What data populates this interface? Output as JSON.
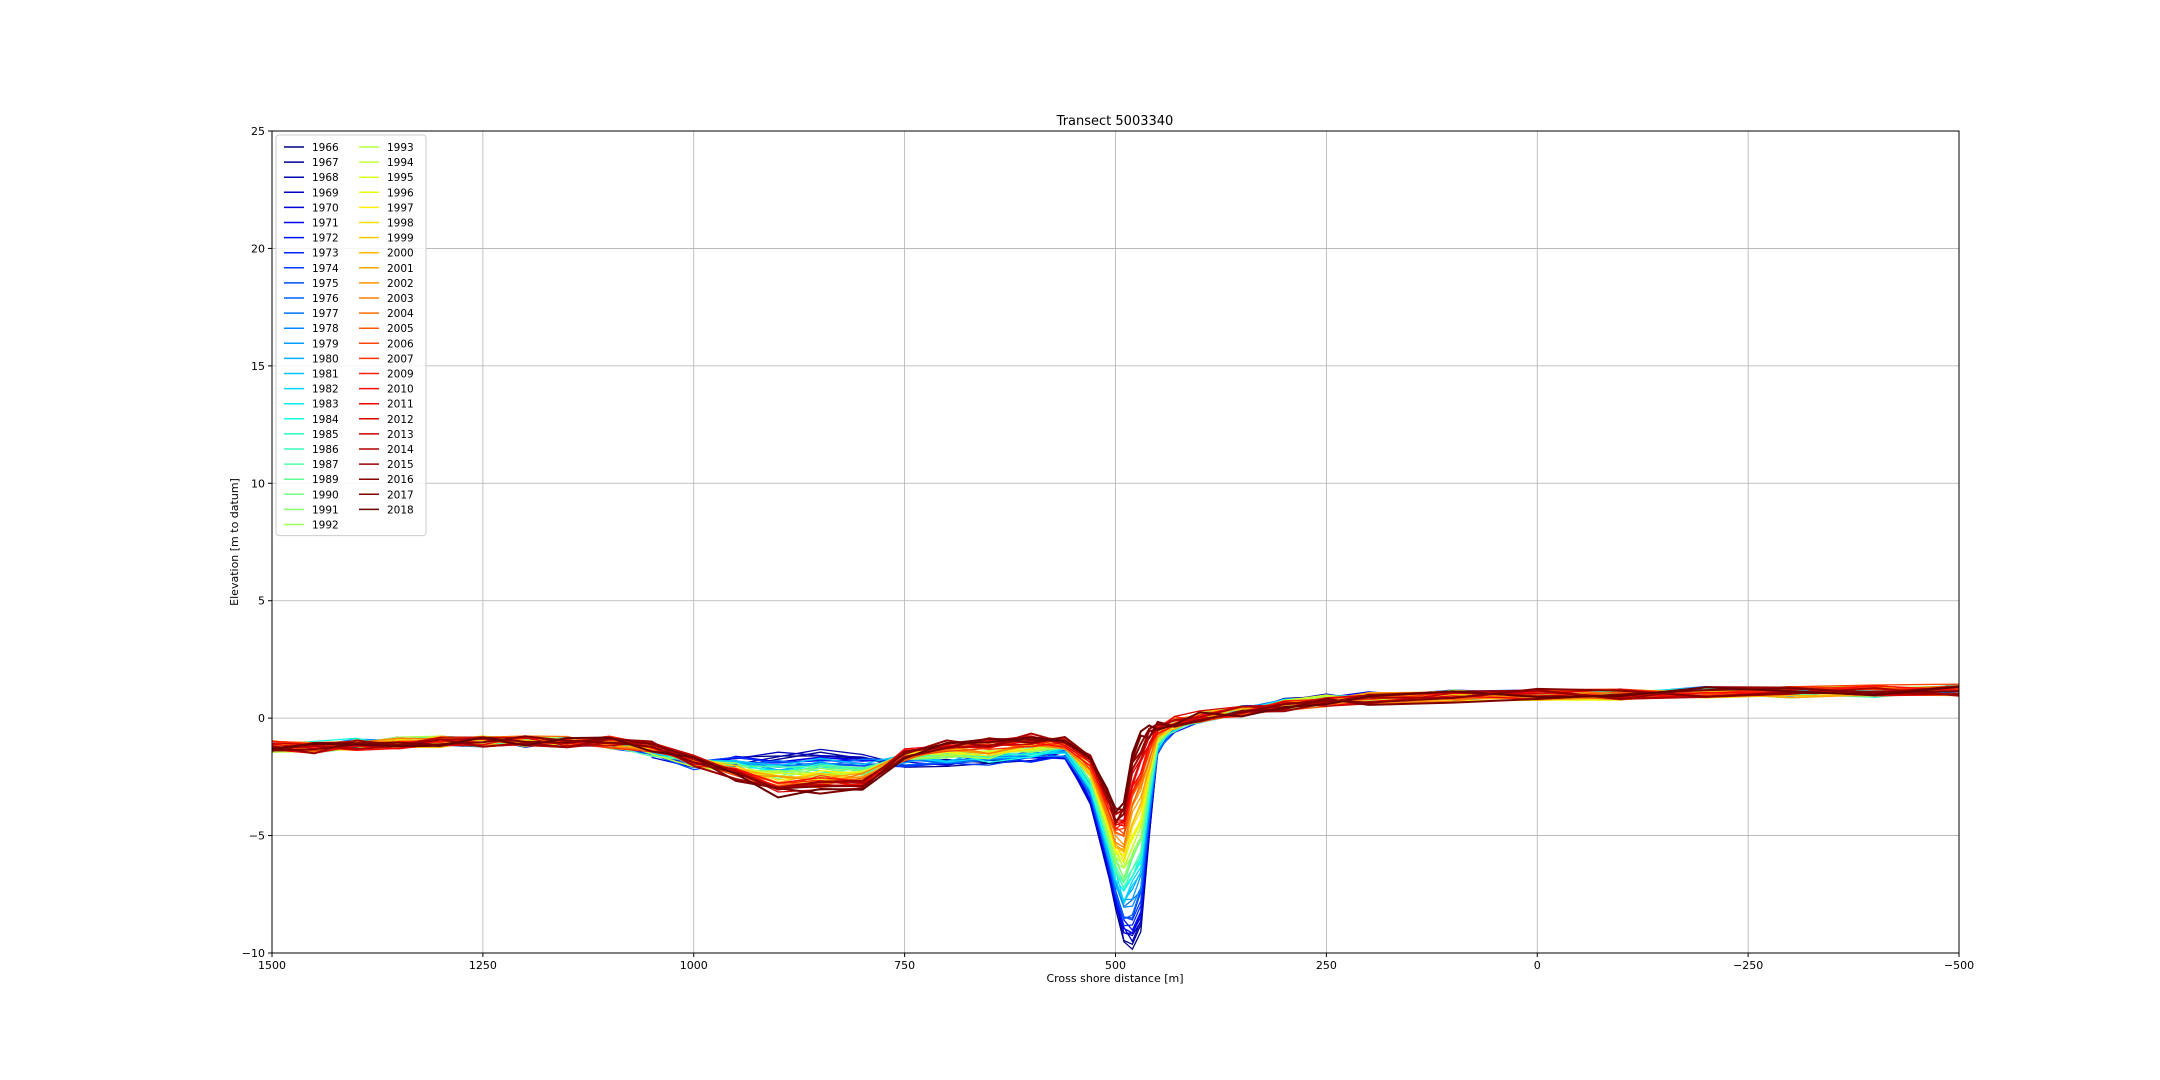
{
  "chart_data": {
    "type": "line",
    "title": "Transect 5003340",
    "xlabel": "Cross shore distance [m]",
    "ylabel": "Elevation [m to datum]",
    "xlim": [
      1500,
      -500
    ],
    "ylim": [
      -10,
      25
    ],
    "x_ticks": [
      1500,
      1250,
      1000,
      750,
      500,
      250,
      0,
      -250,
      -500
    ],
    "x_tick_labels": [
      "1500",
      "1250",
      "1000",
      "750",
      "500",
      "250",
      "0",
      "−250",
      "−500"
    ],
    "y_ticks": [
      -10,
      -5,
      0,
      5,
      10,
      15,
      20,
      25
    ],
    "y_tick_labels": [
      "−10",
      "−5",
      "0",
      "5",
      "10",
      "15",
      "20",
      "25"
    ],
    "grid": true,
    "legend_position": "upper-left",
    "legend_columns": 2,
    "colormap": "jet",
    "series": [
      {
        "name": "1966",
        "color": "#00007f"
      },
      {
        "name": "1967",
        "color": "#000096"
      },
      {
        "name": "1968",
        "color": "#0000ad"
      },
      {
        "name": "1969",
        "color": "#0000c4"
      },
      {
        "name": "1970",
        "color": "#0000db"
      },
      {
        "name": "1971",
        "color": "#0000f1"
      },
      {
        "name": "1972",
        "color": "#0010ff"
      },
      {
        "name": "1973",
        "color": "#0024ff"
      },
      {
        "name": "1974",
        "color": "#0038ff"
      },
      {
        "name": "1975",
        "color": "#004cff"
      },
      {
        "name": "1976",
        "color": "#0060ff"
      },
      {
        "name": "1977",
        "color": "#0074ff"
      },
      {
        "name": "1978",
        "color": "#0088ff"
      },
      {
        "name": "1979",
        "color": "#009cff"
      },
      {
        "name": "1980",
        "color": "#00b0ff"
      },
      {
        "name": "1981",
        "color": "#00c4ff"
      },
      {
        "name": "1982",
        "color": "#00d8ff"
      },
      {
        "name": "1983",
        "color": "#06ecf1"
      },
      {
        "name": "1984",
        "color": "#16ffe1"
      },
      {
        "name": "1985",
        "color": "#29ffce"
      },
      {
        "name": "1986",
        "color": "#3cffba"
      },
      {
        "name": "1987",
        "color": "#50ffa7"
      },
      {
        "name": "1989",
        "color": "#63ff94"
      },
      {
        "name": "1990",
        "color": "#76ff80"
      },
      {
        "name": "1991",
        "color": "#89ff6d"
      },
      {
        "name": "1992",
        "color": "#9cff5a"
      },
      {
        "name": "1993",
        "color": "#b0ff47"
      },
      {
        "name": "1994",
        "color": "#c3ff33"
      },
      {
        "name": "1995",
        "color": "#d6ff20"
      },
      {
        "name": "1996",
        "color": "#e9ff0d"
      },
      {
        "name": "1997",
        "color": "#fff200"
      },
      {
        "name": "1998",
        "color": "#ffde00"
      },
      {
        "name": "1999",
        "color": "#ffcb00"
      },
      {
        "name": "2000",
        "color": "#ffb800"
      },
      {
        "name": "2001",
        "color": "#ffa500"
      },
      {
        "name": "2002",
        "color": "#ff9200"
      },
      {
        "name": "2003",
        "color": "#ff7e00"
      },
      {
        "name": "2004",
        "color": "#ff6b00"
      },
      {
        "name": "2005",
        "color": "#ff5800"
      },
      {
        "name": "2006",
        "color": "#ff4500"
      },
      {
        "name": "2007",
        "color": "#ff3200"
      },
      {
        "name": "2009",
        "color": "#ff1e00"
      },
      {
        "name": "2010",
        "color": "#ff0b00"
      },
      {
        "name": "2011",
        "color": "#f00000"
      },
      {
        "name": "2012",
        "color": "#db0000"
      },
      {
        "name": "2013",
        "color": "#c60000"
      },
      {
        "name": "2014",
        "color": "#b10000"
      },
      {
        "name": "2015",
        "color": "#9c0000"
      },
      {
        "name": "2016",
        "color": "#870000"
      },
      {
        "name": "2017",
        "color": "#7f0000"
      },
      {
        "name": "2018",
        "color": "#6a0000"
      }
    ],
    "profile_shape": {
      "x": [
        1500,
        1450,
        1400,
        1350,
        1300,
        1250,
        1200,
        1150,
        1100,
        1050,
        1000,
        950,
        900,
        850,
        800,
        750,
        700,
        650,
        600,
        560,
        530,
        510,
        500,
        490,
        480,
        470,
        460,
        450,
        430,
        400,
        350,
        300,
        250,
        200,
        100,
        0,
        -100,
        -200,
        -300,
        -400,
        -500
      ],
      "early_profile_y": [
        -1.2,
        -1.2,
        -1.0,
        -1.0,
        -1.0,
        -1.0,
        -1.0,
        -1.0,
        -1.1,
        -1.5,
        -2.0,
        -1.8,
        -1.6,
        -1.5,
        -1.7,
        -1.9,
        -2.0,
        -2.0,
        -1.8,
        -1.6,
        -3.5,
        -6.5,
        -8.0,
        -9.5,
        -9.8,
        -9.0,
        -5.0,
        -1.5,
        -0.5,
        0.0,
        0.3,
        0.6,
        0.8,
        0.9,
        1.0,
        1.0,
        1.0,
        1.1,
        1.1,
        1.1,
        1.2
      ],
      "late_profile_y": [
        -1.2,
        -1.3,
        -1.2,
        -1.1,
        -1.0,
        -1.0,
        -1.0,
        -1.0,
        -1.0,
        -1.2,
        -1.8,
        -2.5,
        -3.2,
        -3.0,
        -2.9,
        -1.5,
        -1.0,
        -1.0,
        -0.8,
        -0.9,
        -1.5,
        -3.0,
        -4.0,
        -3.6,
        -1.5,
        -0.8,
        -0.5,
        -0.3,
        -0.1,
        0.1,
        0.3,
        0.5,
        0.7,
        0.8,
        0.9,
        1.0,
        1.0,
        1.1,
        1.1,
        1.2,
        1.2
      ]
    }
  }
}
